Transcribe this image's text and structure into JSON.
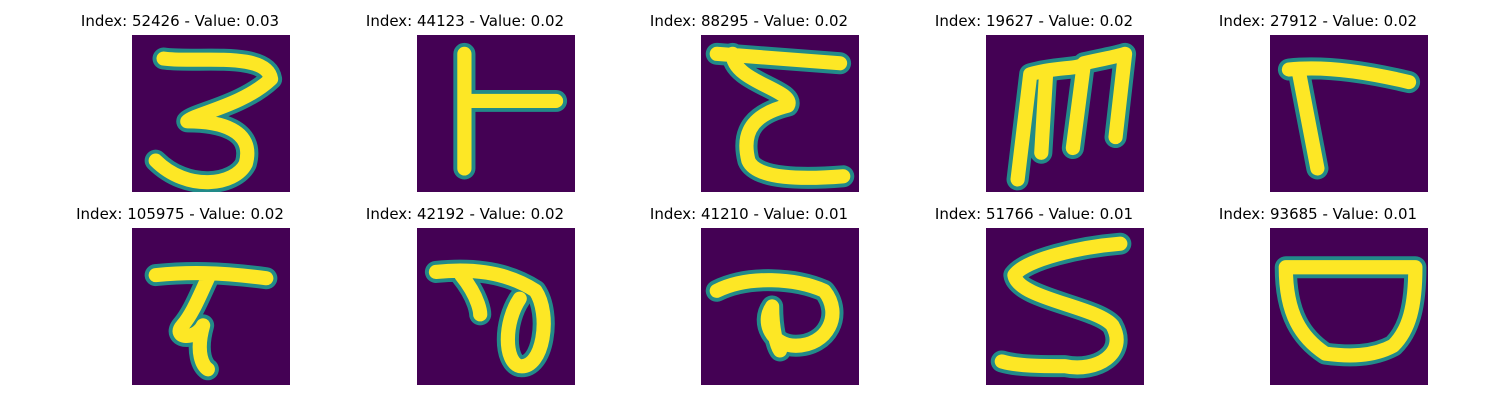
{
  "colors": {
    "background": "#440154",
    "stroke_edge": "#21918c",
    "stroke_core": "#fde725"
  },
  "grid": [
    {
      "title": "Index: 52426 - Value: 0.03",
      "glyph": "digit-three-like"
    },
    {
      "title": "Index: 44123 - Value: 0.02",
      "glyph": "T-sideways"
    },
    {
      "title": "Index: 88295 - Value: 0.02",
      "glyph": "E-curvy"
    },
    {
      "title": "Index: 19627 - Value: 0.02",
      "glyph": "M-like"
    },
    {
      "title": "Index: 27912 - Value: 0.02",
      "glyph": "r-like"
    },
    {
      "title": "Index: 105975 - Value: 0.02",
      "glyph": "T-with-loop"
    },
    {
      "title": "Index: 42192 - Value: 0.02",
      "glyph": "P-loop"
    },
    {
      "title": "Index: 41210 - Value: 0.01",
      "glyph": "P-small-loop"
    },
    {
      "title": "Index: 51766 - Value: 0.01",
      "glyph": "S-like"
    },
    {
      "title": "Index: 93685 - Value: 0.01",
      "glyph": "bowl-D-like"
    }
  ]
}
